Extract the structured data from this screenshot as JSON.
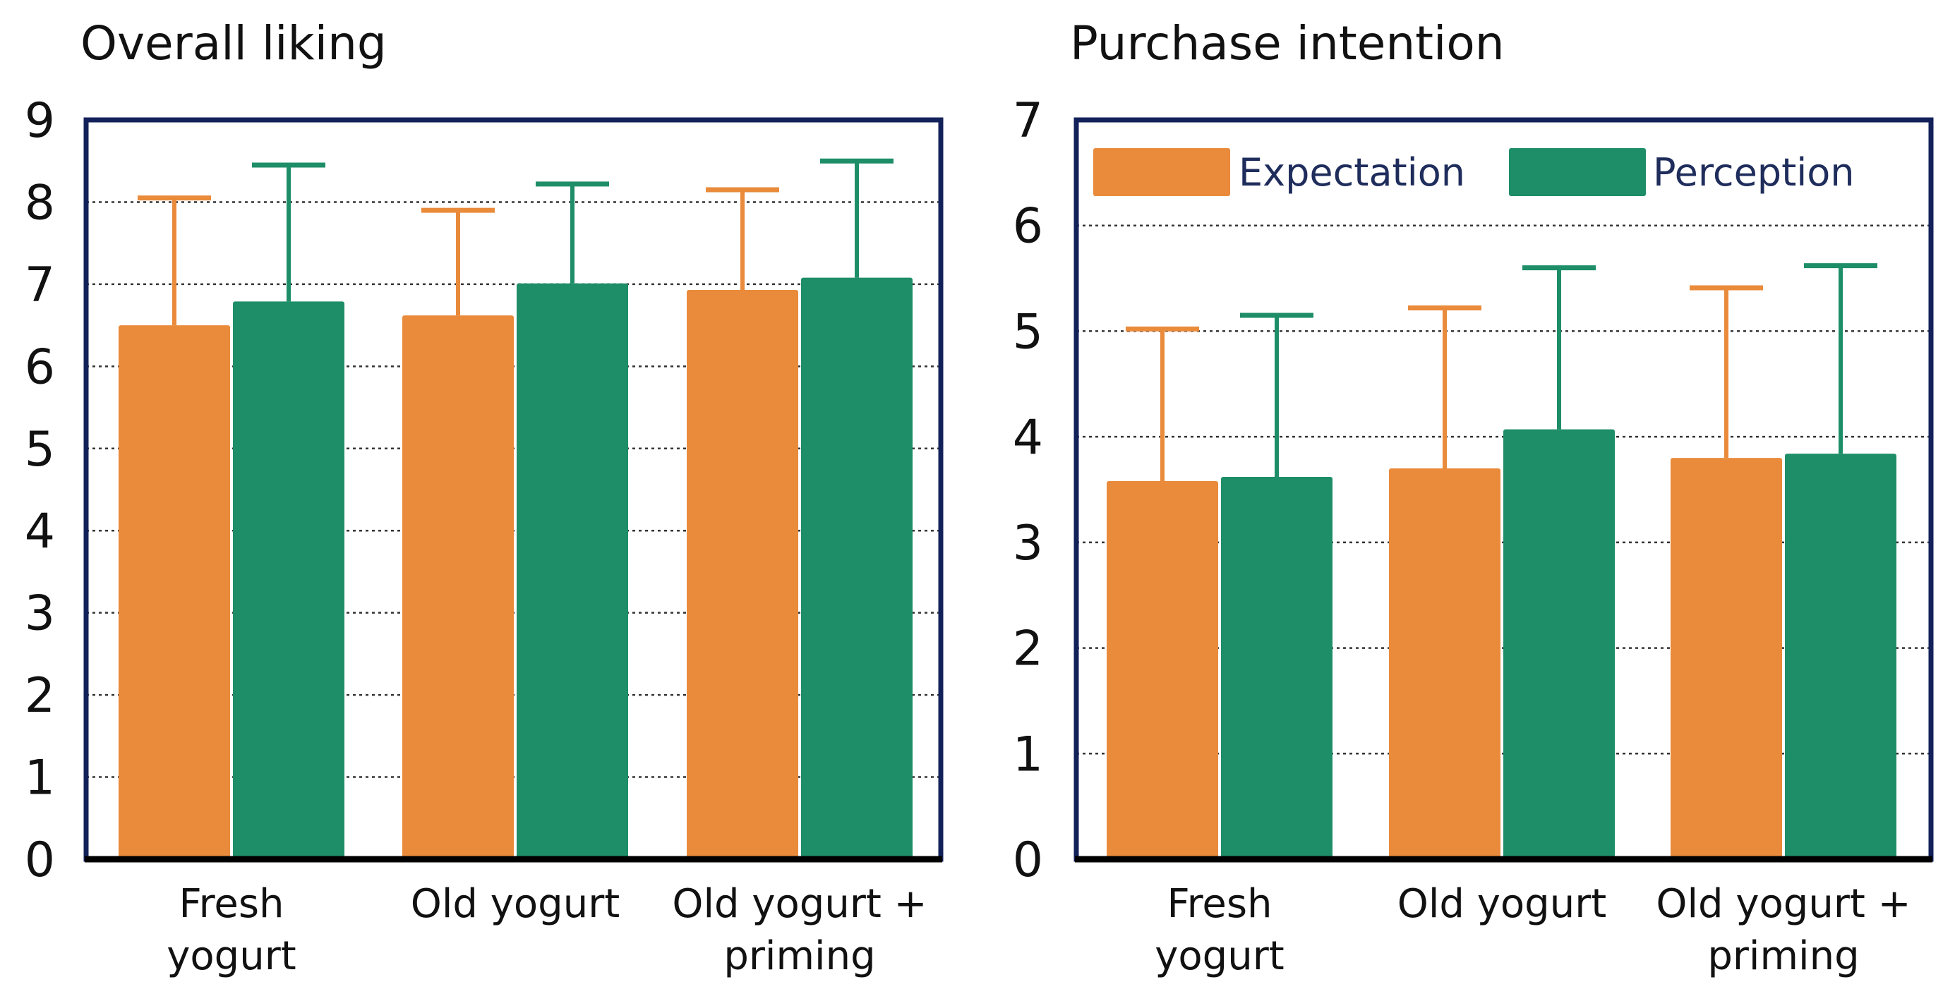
{
  "colors": {
    "expectation": "#e98b3b",
    "perception": "#1e8e68",
    "frame": "#13215a"
  },
  "legend": {
    "items": [
      "Expectation",
      "Perception"
    ]
  },
  "chart_data": [
    {
      "type": "bar",
      "title": "Overall liking",
      "categories": [
        [
          "Fresh",
          "yogurt"
        ],
        [
          "Old yogurt"
        ],
        [
          "Old yogurt +",
          "priming"
        ]
      ],
      "series": [
        {
          "name": "Expectation",
          "values": [
            6.5,
            6.62,
            6.93
          ],
          "error_upper": [
            8.05,
            7.9,
            8.15
          ]
        },
        {
          "name": "Perception",
          "values": [
            6.79,
            7.01,
            7.08
          ],
          "error_upper": [
            8.45,
            8.22,
            8.5
          ]
        }
      ],
      "ylim": [
        0,
        9
      ],
      "yticks": [
        0,
        1,
        2,
        3,
        4,
        5,
        6,
        7,
        8,
        9
      ],
      "xlabel": "",
      "ylabel": "",
      "grid": true,
      "legend": false
    },
    {
      "type": "bar",
      "title": "Purchase intention",
      "categories": [
        [
          "Fresh",
          "yogurt"
        ],
        [
          "Old yogurt"
        ],
        [
          "Old yogurt +",
          "priming"
        ]
      ],
      "series": [
        {
          "name": "Expectation",
          "values": [
            3.58,
            3.7,
            3.8
          ],
          "error_upper": [
            5.02,
            5.22,
            5.41
          ]
        },
        {
          "name": "Perception",
          "values": [
            3.62,
            4.07,
            3.84
          ],
          "error_upper": [
            5.15,
            5.6,
            5.62
          ]
        }
      ],
      "ylim": [
        0,
        7
      ],
      "yticks": [
        0,
        1,
        2,
        3,
        4,
        5,
        6,
        7
      ],
      "xlabel": "",
      "ylabel": "",
      "grid": true,
      "legend": true,
      "legend_position": "top"
    }
  ]
}
